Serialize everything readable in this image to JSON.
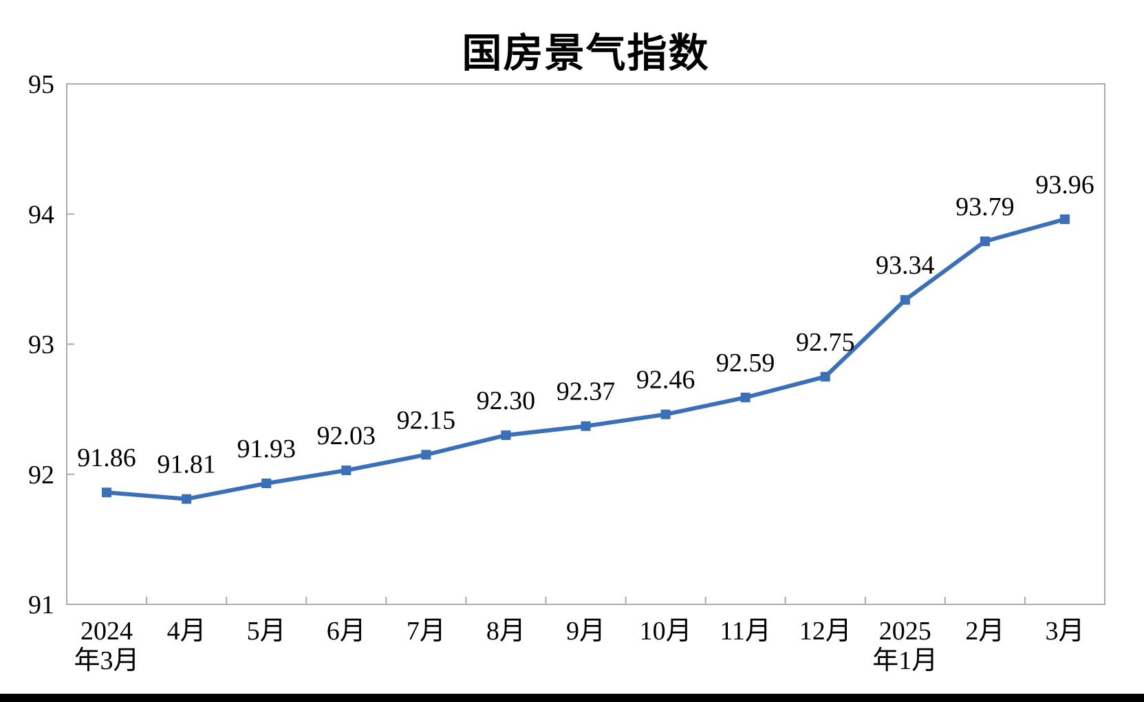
{
  "page": {
    "background": "#ffffff",
    "bottom_bar_color": "#000000"
  },
  "chart_data": {
    "type": "line",
    "title": "国房景气指数",
    "categories": [
      "2024年3月",
      "4月",
      "5月",
      "6月",
      "7月",
      "8月",
      "9月",
      "10月",
      "11月",
      "12月",
      "2025年1月",
      "2月",
      "3月"
    ],
    "series": [
      {
        "name": "国房景气指数",
        "values": [
          91.86,
          91.81,
          91.93,
          92.03,
          92.15,
          92.3,
          92.37,
          92.46,
          92.59,
          92.75,
          93.34,
          93.79,
          93.96
        ],
        "data_labels": [
          "91.86",
          "91.81",
          "91.93",
          "92.03",
          "92.15",
          "92.30",
          "92.37",
          "92.46",
          "92.59",
          "92.75",
          "93.34",
          "93.79",
          "93.96"
        ],
        "color": "#3B6FB8",
        "marker": "square"
      }
    ],
    "xlabel": "",
    "ylabel": "",
    "ylim": [
      91,
      95
    ],
    "yticks": [
      "91",
      "92",
      "93",
      "94",
      "95"
    ],
    "grid": false,
    "legend": "none",
    "axis_color": "#ABABAB",
    "text_color": "#000000"
  }
}
